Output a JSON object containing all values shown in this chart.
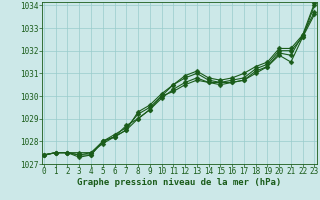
{
  "title": "Graphe pression niveau de la mer (hPa)",
  "bg_color": "#cce8e8",
  "grid_color": "#99cccc",
  "line_color": "#1a5c1a",
  "x_min": 0,
  "x_max": 23,
  "y_min": 1027,
  "y_max": 1034,
  "series": [
    [
      1027.4,
      1027.5,
      1027.5,
      1027.4,
      1027.4,
      1028.0,
      1028.2,
      1028.7,
      1029.0,
      1029.4,
      1030.0,
      1030.2,
      1030.5,
      1030.7,
      1030.6,
      1030.5,
      1030.6,
      1030.7,
      1031.0,
      1031.3,
      1031.8,
      1031.5,
      1032.6,
      1033.6
    ],
    [
      1027.4,
      1027.5,
      1027.5,
      1027.4,
      1027.5,
      1028.0,
      1028.3,
      1028.6,
      1029.2,
      1029.5,
      1030.0,
      1030.5,
      1030.8,
      1031.0,
      1030.7,
      1030.6,
      1030.7,
      1030.8,
      1031.2,
      1031.4,
      1032.0,
      1032.0,
      1032.6,
      1034.0
    ],
    [
      1027.4,
      1027.5,
      1027.5,
      1027.3,
      1027.4,
      1028.0,
      1028.2,
      1028.5,
      1029.0,
      1029.4,
      1029.9,
      1030.3,
      1030.6,
      1030.8,
      1030.6,
      1030.6,
      1030.6,
      1030.7,
      1031.1,
      1031.3,
      1031.9,
      1031.8,
      1032.7,
      1033.7
    ],
    [
      1027.4,
      1027.5,
      1027.5,
      1027.5,
      1027.5,
      1027.9,
      1028.2,
      1028.5,
      1029.3,
      1029.6,
      1030.1,
      1030.5,
      1030.9,
      1031.1,
      1030.8,
      1030.7,
      1030.8,
      1031.0,
      1031.3,
      1031.5,
      1032.1,
      1032.1,
      1032.7,
      1034.1
    ]
  ],
  "marker_size": 2.5,
  "line_width": 0.8
}
